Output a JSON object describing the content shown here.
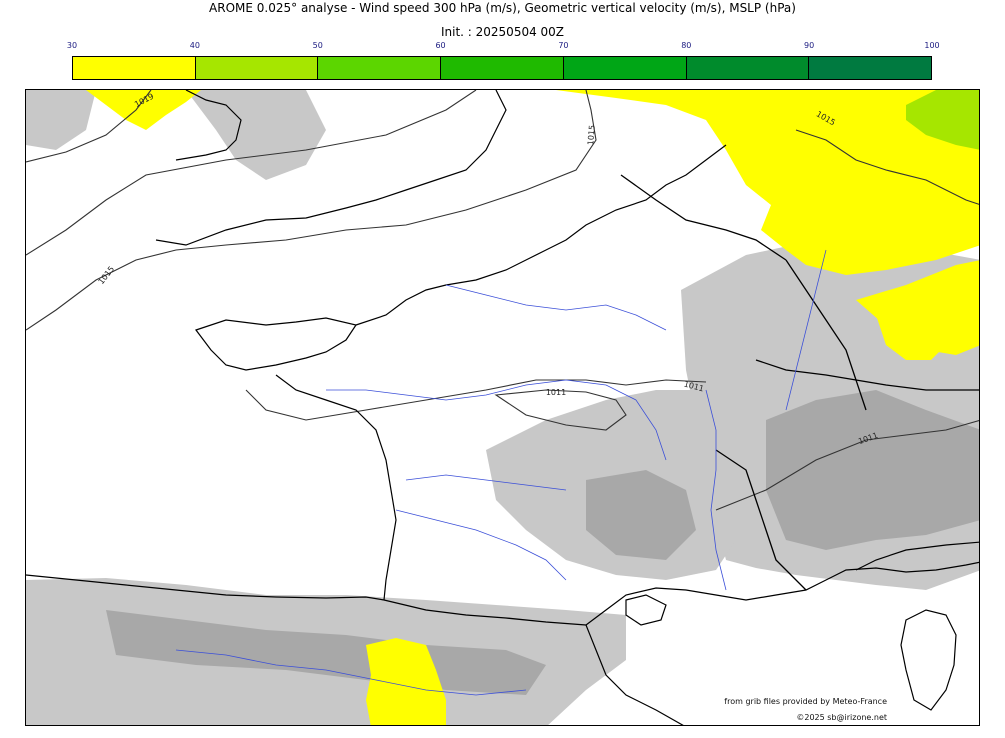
{
  "header": {
    "title": "AROME 0.025° analyse - Wind speed 300 hPa (m/s), Geometric vertical velocity (m/s), MSLP (hPa)",
    "subtitle": "Init. : 20250504 00Z"
  },
  "colorbar": {
    "ticks": [
      "30",
      "40",
      "50",
      "60",
      "70",
      "80",
      "90",
      "100"
    ],
    "colors": [
      "#ffff00",
      "#a6e600",
      "#5cd600",
      "#1fba00",
      "#00a616",
      "#008b2c",
      "#007a40"
    ]
  },
  "map": {
    "region": "France and surroundings",
    "isobar_labels": [
      "1019",
      "1015",
      "1015",
      "1011",
      "1011",
      "1011",
      "1015"
    ],
    "wind_fill_color": "#ffff00",
    "wind_fill_color_stronger": "#a6e600",
    "vertical_velocity_shade": "#c8c8c8",
    "vertical_velocity_shade_dark": "#a8a8a8",
    "coastline_color": "#000000",
    "river_color": "#3b4fd8",
    "isobar_color": "#333333"
  },
  "credits": {
    "source": "from grib files provided by Meteo-France",
    "copyright": "©2025 sb@irizone.net"
  }
}
